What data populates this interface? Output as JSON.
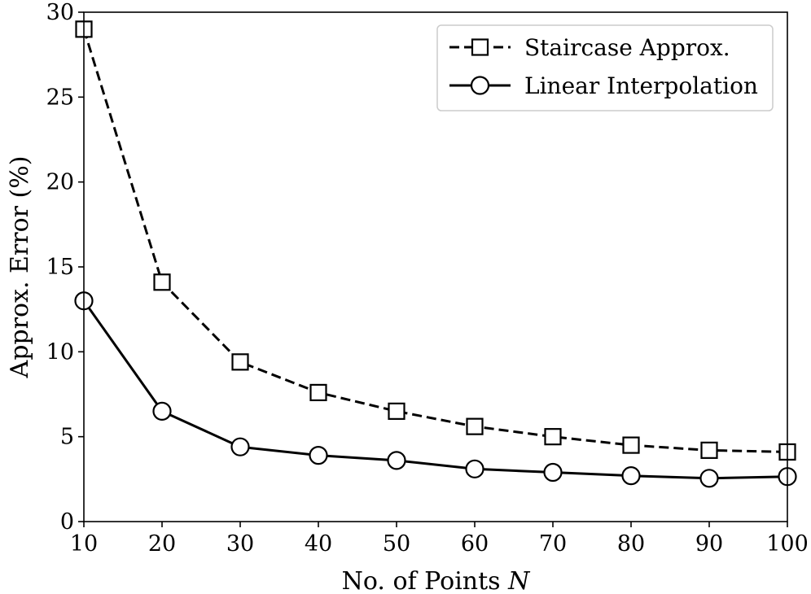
{
  "chart_data": {
    "type": "line",
    "title": "",
    "xlabel": "No. of Points",
    "xlabel_var": "N",
    "ylabel": "Approx. Error (%)",
    "xlim": [
      10,
      100
    ],
    "ylim": [
      0,
      30
    ],
    "xticks": [
      "10",
      "20",
      "30",
      "40",
      "50",
      "60",
      "70",
      "80",
      "90",
      "100"
    ],
    "yticks": [
      "0",
      "5",
      "10",
      "15",
      "20",
      "25",
      "30"
    ],
    "grid": false,
    "legend_position": "top-right",
    "x": [
      10,
      20,
      30,
      40,
      50,
      60,
      70,
      80,
      90,
      100
    ],
    "series": [
      {
        "name": "Staircase Approx.",
        "values": [
          29.0,
          14.1,
          9.4,
          7.6,
          6.5,
          5.6,
          5.0,
          4.5,
          4.2,
          4.1
        ],
        "line_style": "dashed",
        "marker": "square",
        "color": "#000000"
      },
      {
        "name": "Linear Interpolation",
        "values": [
          13.0,
          6.5,
          4.4,
          3.9,
          3.6,
          3.1,
          2.9,
          2.7,
          2.55,
          2.65
        ],
        "line_style": "solid",
        "marker": "circle",
        "color": "#000000"
      }
    ]
  }
}
